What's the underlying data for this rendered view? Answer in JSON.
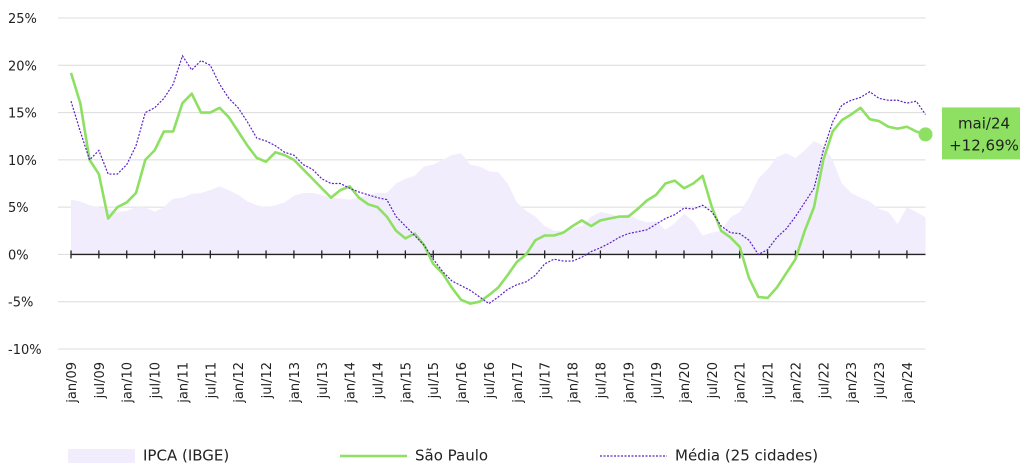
{
  "chart_data": {
    "type": "line",
    "categories": [
      "jan/09",
      null,
      null,
      "jul/09",
      null,
      null,
      "jan/10",
      null,
      null,
      "jul/10",
      null,
      null,
      "jan/11",
      null,
      null,
      "jul/11",
      null,
      null,
      "jan/12",
      null,
      null,
      "jul/12",
      null,
      null,
      "jan/13",
      null,
      null,
      "jul/13",
      null,
      null,
      "jan/14",
      null,
      null,
      "jul/14",
      null,
      null,
      "jan/15",
      null,
      null,
      "jul/15",
      null,
      null,
      "jan/16",
      null,
      null,
      "jul/16",
      null,
      null,
      "jan/17",
      null,
      null,
      "jul/17",
      null,
      null,
      "jan/18",
      null,
      null,
      "jul/18",
      null,
      null,
      "jan/19",
      null,
      null,
      "jul/19",
      null,
      null,
      "jan/20",
      null,
      null,
      "jul/20",
      null,
      null,
      "jan/21",
      null,
      null,
      "jul/21",
      null,
      null,
      "jan/22",
      null,
      null,
      "jul/22",
      null,
      null,
      "jan/23",
      null,
      null,
      "jul/23",
      null,
      null,
      "jan/24",
      null,
      null
    ],
    "series": [
      {
        "name": "IPCA (IBGE)",
        "kind": "area",
        "color": "#f1edfc",
        "values": [
          5.8,
          5.6,
          5.2,
          5,
          4.8,
          4.5,
          4.6,
          5,
          5,
          4.5,
          5,
          5.9,
          6,
          6.4,
          6.5,
          6.8,
          7.2,
          6.8,
          6.3,
          5.6,
          5.2,
          5,
          5.2,
          5.5,
          6.2,
          6.5,
          6.5,
          6.3,
          6,
          5.9,
          5.8,
          6,
          6.3,
          6.5,
          6.5,
          7.5,
          8,
          8.3,
          9.3,
          9.5,
          10,
          10.5,
          10.7,
          9.5,
          9.3,
          8.8,
          8.7,
          7.5,
          5.5,
          4.6,
          4,
          3,
          2.5,
          2.5,
          2.8,
          3,
          4,
          4.5,
          4.3,
          4,
          4.3,
          3.7,
          3.4,
          3.5,
          2.6,
          3.3,
          4.3,
          3.5,
          2,
          2.3,
          2.5,
          3.9,
          4.5,
          6,
          8,
          9,
          10.3,
          10.7,
          10.2,
          11,
          12,
          11.5,
          10,
          7.5,
          6.5,
          6,
          5.6,
          4.8,
          4.5,
          3.2,
          5,
          4.5,
          3.9
        ]
      },
      {
        "name": "São Paulo",
        "kind": "line",
        "color": "#8ee063",
        "values": [
          19.2,
          16,
          10,
          8.5,
          3.8,
          5,
          5.5,
          6.5,
          10,
          11,
          13,
          13,
          16,
          17,
          15,
          15,
          15.5,
          14.5,
          13,
          11.5,
          10.2,
          9.8,
          10.8,
          10.5,
          10,
          9,
          8,
          7,
          6,
          6.8,
          7.2,
          6,
          5.3,
          5,
          4,
          2.5,
          1.7,
          2.2,
          1,
          -1,
          -2,
          -3.5,
          -4.8,
          -5.2,
          -5,
          -4.3,
          -3.5,
          -2.2,
          -0.8,
          0,
          1.5,
          2,
          2,
          2.3,
          3,
          3.6,
          3,
          3.6,
          3.8,
          4,
          4,
          4.8,
          5.7,
          6.3,
          7.5,
          7.8,
          7,
          7.5,
          8.3,
          5,
          2.5,
          1.8,
          0.8,
          -2.5,
          -4.5,
          -4.6,
          -3.5,
          -2,
          -0.5,
          2.5,
          5,
          10,
          13,
          14.2,
          14.8,
          15.5,
          14.3,
          14.1,
          13.5,
          13.3,
          13.5,
          13,
          12.69
        ]
      },
      {
        "name": "Média (25 cidades)",
        "kind": "dotted",
        "color": "#5a1fc8",
        "values": [
          16.2,
          13,
          10,
          11,
          8.5,
          8.5,
          9.5,
          11.5,
          15,
          15.5,
          16.5,
          18,
          21,
          19.5,
          20.5,
          20,
          18,
          16.5,
          15.5,
          14,
          12.3,
          12,
          11.5,
          10.8,
          10.5,
          9.5,
          9,
          8,
          7.5,
          7.5,
          7,
          6.6,
          6.3,
          6,
          5.8,
          4,
          3,
          2,
          1,
          -0.5,
          -1.8,
          -2.8,
          -3.3,
          -3.8,
          -4.5,
          -5.2,
          -4.5,
          -3.7,
          -3.2,
          -2.9,
          -2.2,
          -1,
          -0.5,
          -0.7,
          -0.7,
          -0.3,
          0.3,
          0.7,
          1.2,
          1.8,
          2.2,
          2.4,
          2.6,
          3.2,
          3.8,
          4.2,
          4.9,
          4.8,
          5.2,
          4.5,
          3,
          2.3,
          2.2,
          1.5,
          0,
          0.5,
          1.8,
          2.7,
          4,
          5.5,
          7,
          11,
          14,
          15.8,
          16.3,
          16.6,
          17.2,
          16.5,
          16.3,
          16.3,
          16,
          16.2,
          14.8
        ]
      }
    ],
    "annotation": {
      "label": "mai/24",
      "text": "+12,69%"
    },
    "ylim": [
      -10,
      25
    ],
    "yticks": [
      {
        "value": -10,
        "label": "-10%"
      },
      {
        "value": -5,
        "label": "-5%"
      },
      {
        "value": 0,
        "label": "0%"
      },
      {
        "value": 5,
        "label": "5%"
      },
      {
        "value": 10,
        "label": "10%"
      },
      {
        "value": 15,
        "label": "15%"
      },
      {
        "value": 20,
        "label": "20%"
      },
      {
        "value": 25,
        "label": "25%"
      }
    ],
    "grid": true,
    "legend": "bottom"
  }
}
